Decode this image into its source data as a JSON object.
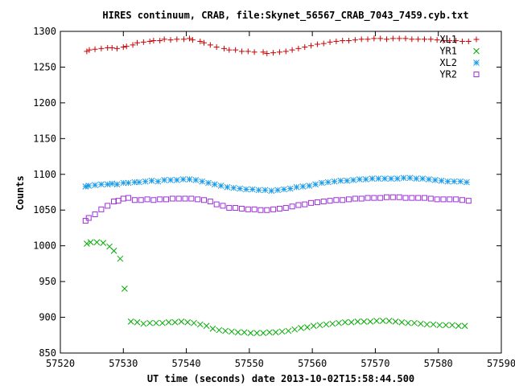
{
  "chart_data": {
    "type": "scatter",
    "title": "HIRES continuum, CRAB, file:Skynet_56567_CRAB_7043_7459.cyb.txt",
    "xlabel": "UT time (seconds) date 2013-10-02T15:58:44.500",
    "ylabel": "Counts",
    "xlim": [
      57520,
      57590
    ],
    "ylim": [
      850,
      1300
    ],
    "xticks": [
      57520,
      57530,
      57540,
      57550,
      57560,
      57570,
      57580,
      57590
    ],
    "yticks": [
      850,
      900,
      950,
      1000,
      1050,
      1100,
      1150,
      1200,
      1250,
      1300
    ],
    "grid": false,
    "legend_position": "top-right",
    "series": [
      {
        "name": "XL1",
        "color": "#cc0000",
        "marker": "plus",
        "x": [
          57524.2,
          57524.6,
          57525.5,
          57526.5,
          57527.5,
          57528.2,
          57529.0,
          57530.0,
          57530.5,
          57531.5,
          57532.2,
          57533.2,
          57534.2,
          57534.8,
          57535.8,
          57536.5,
          57537.5,
          57538.5,
          57539.6,
          57540.5,
          57541.0,
          57542.2,
          57542.8,
          57543.8,
          57544.8,
          57546.0,
          57546.8,
          57547.8,
          57548.8,
          57549.8,
          57550.8,
          57552.2,
          57552.8,
          57553.8,
          57554.8,
          57555.8,
          57556.8,
          57557.8,
          57558.8,
          57559.8,
          57560.8,
          57561.8,
          57562.8,
          57563.8,
          57564.8,
          57565.8,
          57566.8,
          57567.8,
          57568.8,
          57569.8,
          57570.8,
          57571.8,
          57572.8,
          57573.8,
          57574.8,
          57575.8,
          57576.8,
          57577.8,
          57578.8,
          57579.8,
          57580.8,
          57581.8,
          57582.8,
          57583.8,
          57584.8
        ],
        "y": [
          1272,
          1274,
          1275,
          1276,
          1277,
          1277,
          1276,
          1278,
          1279,
          1281,
          1284,
          1285,
          1286,
          1287,
          1287,
          1289,
          1288,
          1289,
          1289,
          1290,
          1288,
          1286,
          1284,
          1281,
          1278,
          1276,
          1274,
          1274,
          1272,
          1272,
          1271,
          1271,
          1269,
          1270,
          1271,
          1272,
          1274,
          1276,
          1278,
          1280,
          1282,
          1283,
          1285,
          1286,
          1287,
          1287,
          1288,
          1289,
          1289,
          1290,
          1290,
          1289,
          1290,
          1290,
          1290,
          1289,
          1289,
          1289,
          1289,
          1288,
          1287,
          1287,
          1287,
          1286,
          1286
        ]
      },
      {
        "name": "YR1",
        "color": "#00aa00",
        "marker": "cross",
        "x": [
          57524.2,
          57524.8,
          57525.8,
          57526.8,
          57527.8,
          57528.5,
          57529.5,
          57530.2,
          57531.2,
          57532.2,
          57533.2,
          57534.2,
          57535.2,
          57536.2,
          57537.2,
          57538.2,
          57539.2,
          57540.2,
          57541.2,
          57542.2,
          57543.2,
          57544.2,
          57545.2,
          57546.2,
          57547.2,
          57548.2,
          57549.2,
          57550.2,
          57551.2,
          57552.2,
          57553.2,
          57554.2,
          57555.2,
          57556.2,
          57557.2,
          57558.2,
          57559.2,
          57560.2,
          57561.2,
          57562.2,
          57563.2,
          57564.2,
          57565.2,
          57566.2,
          57567.2,
          57568.2,
          57569.2,
          57570.2,
          57571.2,
          57572.2,
          57573.2,
          57574.2,
          57575.2,
          57576.2,
          57577.2,
          57578.2,
          57579.2,
          57580.2,
          57581.2,
          57582.2,
          57583.2,
          57584.2
        ],
        "y": [
          1003,
          1005,
          1005,
          1004,
          999,
          993,
          982,
          940,
          894,
          893,
          891,
          892,
          892,
          892,
          893,
          893,
          894,
          893,
          892,
          890,
          888,
          884,
          882,
          881,
          880,
          879,
          879,
          878,
          878,
          878,
          879,
          879,
          880,
          881,
          883,
          885,
          886,
          888,
          889,
          890,
          891,
          892,
          893,
          893,
          894,
          894,
          894,
          895,
          895,
          895,
          894,
          893,
          892,
          892,
          891,
          890,
          890,
          889,
          889,
          889,
          888,
          888
        ]
      },
      {
        "name": "XL2",
        "color": "#1a9be8",
        "marker": "star",
        "x": [
          57524.0,
          57524.5,
          57525.5,
          57526.5,
          57527.5,
          57528.2,
          57529.0,
          57530.0,
          57530.8,
          57531.8,
          57532.5,
          57533.5,
          57534.5,
          57535.5,
          57536.5,
          57537.5,
          57538.5,
          57539.5,
          57540.5,
          57541.5,
          57542.5,
          57543.5,
          57544.5,
          57545.5,
          57546.5,
          57547.5,
          57548.5,
          57549.5,
          57550.5,
          57551.5,
          57552.5,
          57553.5,
          57554.5,
          57555.5,
          57556.5,
          57557.5,
          57558.5,
          57559.5,
          57560.5,
          57561.5,
          57562.5,
          57563.5,
          57564.5,
          57565.5,
          57566.5,
          57567.5,
          57568.5,
          57569.5,
          57570.5,
          57571.5,
          57572.5,
          57573.5,
          57574.5,
          57575.5,
          57576.5,
          57577.5,
          57578.5,
          57579.5,
          57580.5,
          57581.5,
          57582.5,
          57583.5,
          57584.5
        ],
        "y": [
          1083,
          1084,
          1085,
          1086,
          1086,
          1087,
          1086,
          1088,
          1088,
          1089,
          1089,
          1090,
          1091,
          1090,
          1092,
          1092,
          1092,
          1093,
          1093,
          1092,
          1090,
          1088,
          1086,
          1084,
          1082,
          1081,
          1080,
          1079,
          1079,
          1078,
          1078,
          1077,
          1078,
          1079,
          1080,
          1082,
          1083,
          1084,
          1086,
          1088,
          1089,
          1090,
          1091,
          1091,
          1092,
          1093,
          1093,
          1094,
          1094,
          1094,
          1094,
          1094,
          1095,
          1095,
          1094,
          1094,
          1093,
          1092,
          1091,
          1090,
          1090,
          1090,
          1089
        ]
      },
      {
        "name": "YR2",
        "color": "#9b30d9",
        "marker": "square",
        "x": [
          57524.0,
          57524.5,
          57525.5,
          57526.5,
          57527.5,
          57528.5,
          57529.2,
          57530.0,
          57530.8,
          57531.8,
          57532.8,
          57533.8,
          57534.8,
          57535.8,
          57536.8,
          57537.8,
          57538.8,
          57539.8,
          57540.8,
          57541.8,
          57542.8,
          57543.8,
          57544.8,
          57545.8,
          57546.8,
          57547.8,
          57548.8,
          57549.8,
          57550.8,
          57551.8,
          57552.8,
          57553.8,
          57554.8,
          57555.8,
          57556.8,
          57557.8,
          57558.8,
          57559.8,
          57560.8,
          57561.8,
          57562.8,
          57563.8,
          57564.8,
          57565.8,
          57566.8,
          57567.8,
          57568.8,
          57569.8,
          57570.8,
          57571.8,
          57572.8,
          57573.8,
          57574.8,
          57575.8,
          57576.8,
          57577.8,
          57578.8,
          57579.8,
          57580.8,
          57581.8,
          57582.8,
          57583.8,
          57584.8
        ],
        "y": [
          1035,
          1039,
          1044,
          1051,
          1056,
          1062,
          1063,
          1066,
          1067,
          1064,
          1064,
          1065,
          1064,
          1065,
          1065,
          1066,
          1066,
          1066,
          1066,
          1065,
          1064,
          1062,
          1058,
          1056,
          1053,
          1053,
          1052,
          1051,
          1051,
          1050,
          1050,
          1051,
          1052,
          1053,
          1055,
          1057,
          1058,
          1060,
          1061,
          1062,
          1063,
          1064,
          1064,
          1065,
          1066,
          1066,
          1067,
          1067,
          1067,
          1068,
          1068,
          1068,
          1067,
          1067,
          1067,
          1067,
          1066,
          1065,
          1065,
          1065,
          1065,
          1064,
          1063
        ]
      }
    ]
  }
}
